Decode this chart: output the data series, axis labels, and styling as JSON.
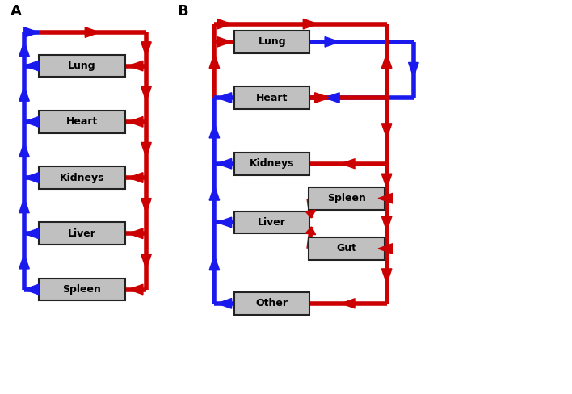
{
  "background": "#ffffff",
  "red": "#cc0000",
  "blue": "#1a1aee",
  "box_color": "#c0c0c0",
  "box_edge": "#222222",
  "lw": 4.0,
  "label_A": "A",
  "label_B": "B",
  "organs_A": [
    "Lung",
    "Heart",
    "Kidneys",
    "Liver",
    "Spleen"
  ],
  "organs_B_left": [
    "Lung",
    "Heart",
    "Kidneys",
    "Liver",
    "Other"
  ],
  "organs_B_right": [
    "Spleen",
    "Gut"
  ]
}
